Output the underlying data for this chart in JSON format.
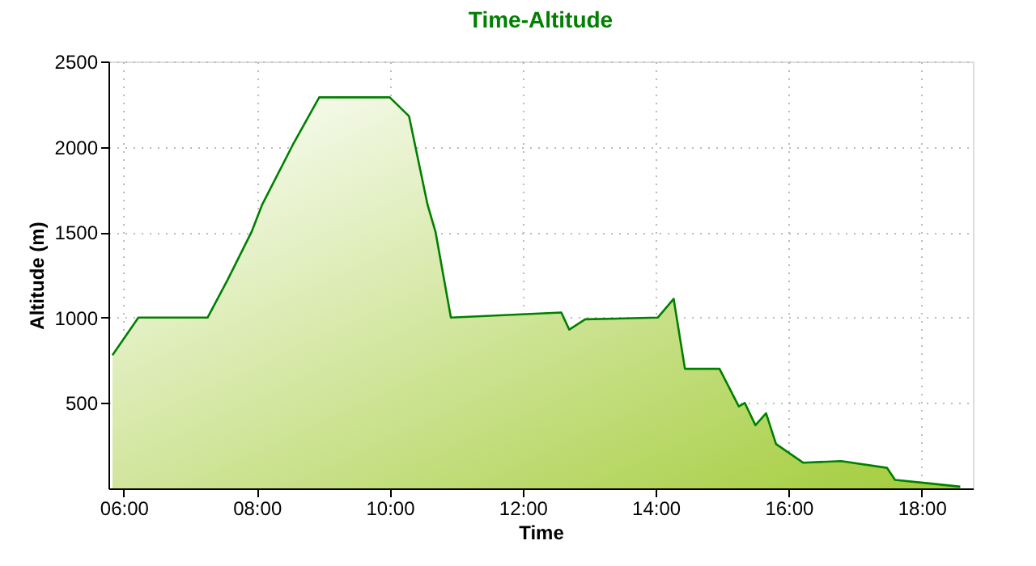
{
  "chart_data": {
    "type": "area",
    "title": "Time-Altitude",
    "xlabel": "Time",
    "ylabel": "Altitude (m)",
    "x": [
      5.83,
      6.22,
      7.26,
      7.56,
      7.92,
      8.08,
      8.54,
      8.94,
      10.0,
      10.29,
      10.57,
      10.69,
      10.92,
      12.58,
      12.7,
      12.94,
      14.03,
      14.27,
      14.44,
      14.96,
      15.25,
      15.34,
      15.5,
      15.66,
      15.81,
      16.22,
      16.79,
      17.48,
      17.6,
      18.09,
      18.58
    ],
    "series": [
      {
        "color": "#008000",
        "values": [
          780,
          1000,
          1000,
          1220,
          1500,
          1660,
          2010,
          2290,
          2290,
          2180,
          1660,
          1500,
          1000,
          1030,
          930,
          990,
          1000,
          1110,
          700,
          700,
          480,
          500,
          370,
          440,
          260,
          150,
          160,
          120,
          50,
          30,
          10
        ]
      }
    ],
    "xlim": [
      5.77,
      18.77
    ],
    "ylim": [
      0,
      2500
    ],
    "xticks": [
      {
        "value": 6,
        "label": "06:00"
      },
      {
        "value": 8,
        "label": "08:00"
      },
      {
        "value": 10,
        "label": "10:00"
      },
      {
        "value": 12,
        "label": "12:00"
      },
      {
        "value": 14,
        "label": "14:00"
      },
      {
        "value": 16,
        "label": "16:00"
      },
      {
        "value": 18,
        "label": "18:00"
      }
    ],
    "yticks": [
      500,
      1000,
      1500,
      2000,
      2500
    ],
    "grid": true,
    "marker": "none",
    "line_style": "solid"
  }
}
